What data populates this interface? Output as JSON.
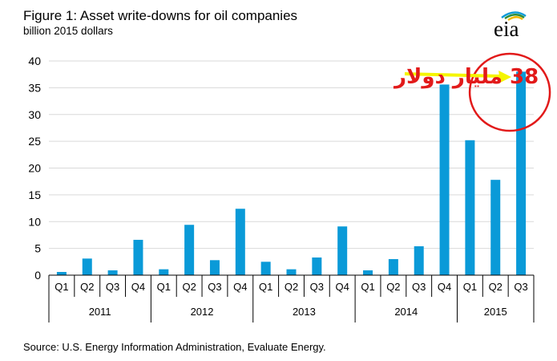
{
  "header": {
    "title": "Figure 1:  Asset write-downs for oil companies",
    "subtitle": "billion 2015 dollars"
  },
  "logo": {
    "text": "eia",
    "icon": "eia-sun-arc-icon"
  },
  "footer": {
    "source": "Source:  U.S. Energy Information Administration, Evaluate Energy."
  },
  "annotation": {
    "text": "38 مليار دولار",
    "color": "#e21a1a",
    "arrow_color": "#f5f500",
    "circle_color": "#e21a1a"
  },
  "colors": {
    "bar": "#0a9ad8",
    "axis": "#000000",
    "gridline": "#d9d9d9"
  },
  "chart_data": {
    "type": "bar",
    "title": "Figure 1:  Asset write-downs for oil companies",
    "ylabel": "billion 2015 dollars",
    "ylim": [
      0,
      40
    ],
    "yticks": [
      0,
      5,
      10,
      15,
      20,
      25,
      30,
      35,
      40
    ],
    "grid": true,
    "categories": [
      "Q1",
      "Q2",
      "Q3",
      "Q4",
      "Q1",
      "Q2",
      "Q3",
      "Q4",
      "Q1",
      "Q2",
      "Q3",
      "Q4",
      "Q1",
      "Q2",
      "Q3",
      "Q4",
      "Q1",
      "Q2",
      "Q3"
    ],
    "groups": [
      {
        "label": "2011",
        "count": 4
      },
      {
        "label": "2012",
        "count": 4
      },
      {
        "label": "2013",
        "count": 4
      },
      {
        "label": "2014",
        "count": 4
      },
      {
        "label": "2015",
        "count": 3
      }
    ],
    "values": [
      0.6,
      3.1,
      0.9,
      6.6,
      1.1,
      9.4,
      2.8,
      12.4,
      2.5,
      1.1,
      3.3,
      9.1,
      0.9,
      3.0,
      5.4,
      35.6,
      25.2,
      17.8,
      38.0
    ]
  }
}
